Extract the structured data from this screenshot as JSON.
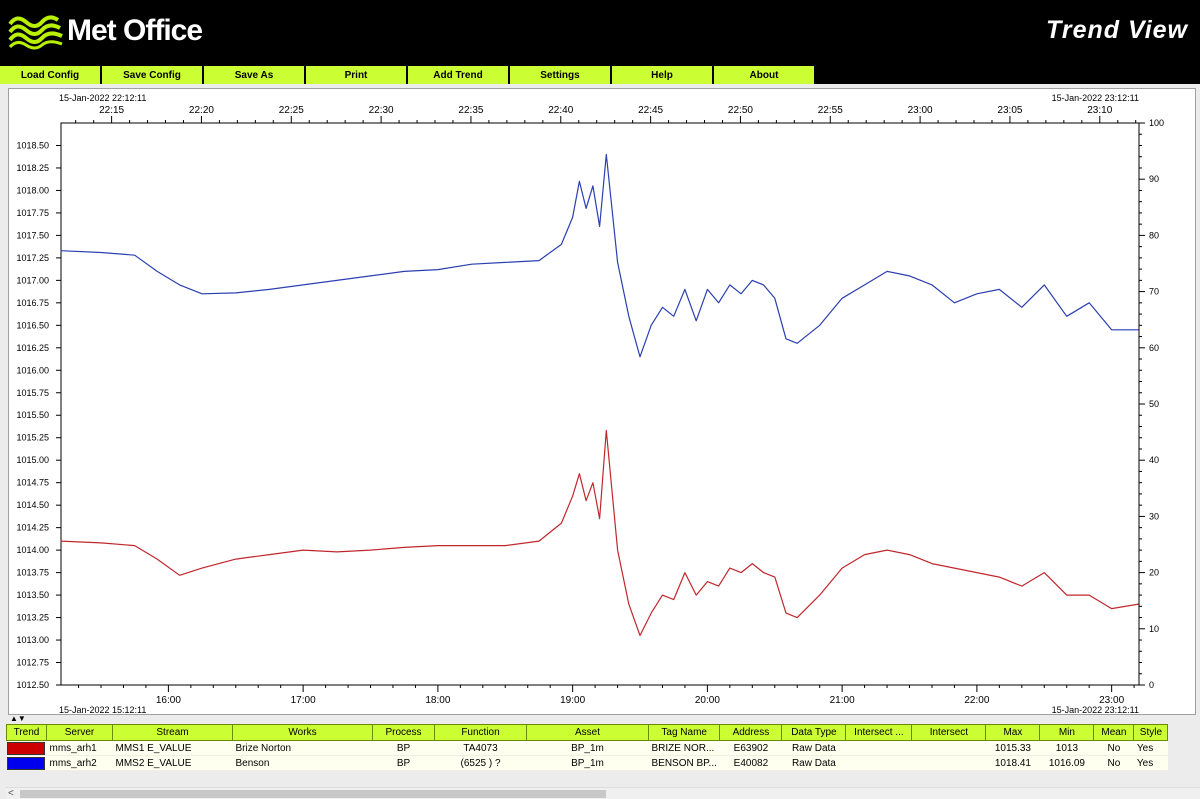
{
  "header": {
    "logo_text": "Met Office",
    "app_title": "Trend View"
  },
  "menu": [
    {
      "id": "load-config",
      "label": "Load Config"
    },
    {
      "id": "save-config",
      "label": "Save Config"
    },
    {
      "id": "save-as",
      "label": "Save As"
    },
    {
      "id": "print",
      "label": "Print"
    },
    {
      "id": "add-trend",
      "label": "Add Trend"
    },
    {
      "id": "settings",
      "label": "Settings"
    },
    {
      "id": "help",
      "label": "Help"
    },
    {
      "id": "about",
      "label": "About"
    }
  ],
  "chart_data": {
    "type": "line",
    "top_axis": {
      "start_label": "15-Jan-2022 22:12:11",
      "end_label": "15-Jan-2022 23:12:11",
      "ticks": [
        "22:15",
        "22:20",
        "22:25",
        "22:30",
        "22:35",
        "22:40",
        "22:45",
        "22:50",
        "22:55",
        "23:00",
        "23:05",
        "23:10"
      ]
    },
    "bottom_axis": {
      "start_label": "15-Jan-2022 15:12:11",
      "end_label": "15-Jan-2022 23:12:11",
      "ticks": [
        "16:00",
        "17:00",
        "18:00",
        "19:00",
        "20:00",
        "21:00",
        "22:00",
        "23:00"
      ]
    },
    "left_axis": {
      "ylim": [
        1012.5,
        1018.75
      ],
      "ticks": [
        "1012.50",
        "1012.75",
        "1013.00",
        "1013.25",
        "1013.50",
        "1013.75",
        "1014.00",
        "1014.25",
        "1014.50",
        "1014.75",
        "1015.00",
        "1015.25",
        "1015.50",
        "1015.75",
        "1016.00",
        "1016.25",
        "1016.50",
        "1016.75",
        "1017.00",
        "1017.25",
        "1017.50",
        "1017.75",
        "1018.00",
        "1018.25",
        "1018.50"
      ]
    },
    "right_axis": {
      "ylim": [
        0,
        100
      ],
      "ticks": [
        "0",
        "10",
        "20",
        "30",
        "40",
        "50",
        "60",
        "70",
        "80",
        "90",
        "100"
      ]
    },
    "series": [
      {
        "color": "#2b3fb0",
        "points": [
          [
            "15:12",
            1017.33
          ],
          [
            "15:30",
            1017.31
          ],
          [
            "15:45",
            1017.28
          ],
          [
            "15:55",
            1017.1
          ],
          [
            "16:05",
            1016.95
          ],
          [
            "16:15",
            1016.85
          ],
          [
            "16:30",
            1016.86
          ],
          [
            "16:45",
            1016.9
          ],
          [
            "17:00",
            1016.95
          ],
          [
            "17:15",
            1017.0
          ],
          [
            "17:30",
            1017.05
          ],
          [
            "17:45",
            1017.1
          ],
          [
            "18:00",
            1017.12
          ],
          [
            "18:15",
            1017.18
          ],
          [
            "18:30",
            1017.2
          ],
          [
            "18:45",
            1017.22
          ],
          [
            "18:55",
            1017.4
          ],
          [
            "19:00",
            1017.7
          ],
          [
            "19:03",
            1018.1
          ],
          [
            "19:06",
            1017.8
          ],
          [
            "19:09",
            1018.05
          ],
          [
            "19:12",
            1017.6
          ],
          [
            "19:15",
            1018.4
          ],
          [
            "19:20",
            1017.2
          ],
          [
            "19:25",
            1016.6
          ],
          [
            "19:30",
            1016.15
          ],
          [
            "19:35",
            1016.5
          ],
          [
            "19:40",
            1016.7
          ],
          [
            "19:45",
            1016.6
          ],
          [
            "19:50",
            1016.9
          ],
          [
            "19:55",
            1016.55
          ],
          [
            "20:00",
            1016.9
          ],
          [
            "20:05",
            1016.75
          ],
          [
            "20:10",
            1016.95
          ],
          [
            "20:15",
            1016.85
          ],
          [
            "20:20",
            1017.0
          ],
          [
            "20:25",
            1016.95
          ],
          [
            "20:30",
            1016.8
          ],
          [
            "20:35",
            1016.35
          ],
          [
            "20:40",
            1016.3
          ],
          [
            "20:50",
            1016.5
          ],
          [
            "21:00",
            1016.8
          ],
          [
            "21:10",
            1016.95
          ],
          [
            "21:20",
            1017.1
          ],
          [
            "21:30",
            1017.05
          ],
          [
            "21:40",
            1016.95
          ],
          [
            "21:50",
            1016.75
          ],
          [
            "22:00",
            1016.85
          ],
          [
            "22:10",
            1016.9
          ],
          [
            "22:20",
            1016.7
          ],
          [
            "22:30",
            1016.95
          ],
          [
            "22:40",
            1016.6
          ],
          [
            "22:50",
            1016.75
          ],
          [
            "23:00",
            1016.45
          ],
          [
            "23:12",
            1016.45
          ]
        ]
      },
      {
        "color": "#c0272d",
        "points": [
          [
            "15:12",
            1014.1
          ],
          [
            "15:30",
            1014.08
          ],
          [
            "15:45",
            1014.05
          ],
          [
            "15:55",
            1013.9
          ],
          [
            "16:05",
            1013.72
          ],
          [
            "16:15",
            1013.8
          ],
          [
            "16:30",
            1013.9
          ],
          [
            "16:45",
            1013.95
          ],
          [
            "17:00",
            1014.0
          ],
          [
            "17:15",
            1013.98
          ],
          [
            "17:30",
            1014.0
          ],
          [
            "17:45",
            1014.03
          ],
          [
            "18:00",
            1014.05
          ],
          [
            "18:15",
            1014.05
          ],
          [
            "18:30",
            1014.05
          ],
          [
            "18:45",
            1014.1
          ],
          [
            "18:55",
            1014.3
          ],
          [
            "19:00",
            1014.6
          ],
          [
            "19:03",
            1014.85
          ],
          [
            "19:06",
            1014.55
          ],
          [
            "19:09",
            1014.75
          ],
          [
            "19:12",
            1014.35
          ],
          [
            "19:15",
            1015.33
          ],
          [
            "19:20",
            1014.0
          ],
          [
            "19:25",
            1013.4
          ],
          [
            "19:30",
            1013.05
          ],
          [
            "19:35",
            1013.3
          ],
          [
            "19:40",
            1013.5
          ],
          [
            "19:45",
            1013.45
          ],
          [
            "19:50",
            1013.75
          ],
          [
            "19:55",
            1013.5
          ],
          [
            "20:00",
            1013.65
          ],
          [
            "20:05",
            1013.6
          ],
          [
            "20:10",
            1013.8
          ],
          [
            "20:15",
            1013.75
          ],
          [
            "20:20",
            1013.85
          ],
          [
            "20:25",
            1013.75
          ],
          [
            "20:30",
            1013.7
          ],
          [
            "20:35",
            1013.3
          ],
          [
            "20:40",
            1013.25
          ],
          [
            "20:50",
            1013.5
          ],
          [
            "21:00",
            1013.8
          ],
          [
            "21:10",
            1013.95
          ],
          [
            "21:20",
            1014.0
          ],
          [
            "21:30",
            1013.95
          ],
          [
            "21:40",
            1013.85
          ],
          [
            "21:50",
            1013.8
          ],
          [
            "22:00",
            1013.75
          ],
          [
            "22:10",
            1013.7
          ],
          [
            "22:20",
            1013.6
          ],
          [
            "22:30",
            1013.75
          ],
          [
            "22:40",
            1013.5
          ],
          [
            "22:50",
            1013.5
          ],
          [
            "23:00",
            1013.35
          ],
          [
            "23:12",
            1013.4
          ]
        ]
      }
    ]
  },
  "table": {
    "columns": [
      "Trend",
      "Server",
      "Stream",
      "Works",
      "Process",
      "Function",
      "Asset",
      "Tag Name",
      "Address",
      "Data Type",
      "Intersect ...",
      "Intersect",
      "Max",
      "Min",
      "Mean",
      "Style"
    ],
    "rows": [
      {
        "swatch": "#cc0000",
        "server": "mms_arh1",
        "stream": "MMS1 E_VALUE",
        "works": "Brize Norton",
        "process": "BP",
        "function": "TA4073",
        "asset": "BP_1m",
        "tag": "BRIZE NOR...",
        "address": "E63902",
        "dtype": "Raw Data",
        "intersect1": "",
        "intersect2": "",
        "max": "1015.33",
        "min": "1013",
        "mean": "No",
        "style": "Yes"
      },
      {
        "swatch": "#0000ee",
        "server": "mms_arh2",
        "stream": "MMS2 E_VALUE",
        "works": "Benson",
        "process": "BP",
        "function": "(6525 ) ?",
        "asset": "BP_1m",
        "tag": "BENSON BP...",
        "address": "E40082",
        "dtype": "Raw Data",
        "intersect1": "",
        "intersect2": "",
        "max": "1018.41",
        "min": "1016.09",
        "mean": "No",
        "style": "Yes"
      }
    ]
  }
}
